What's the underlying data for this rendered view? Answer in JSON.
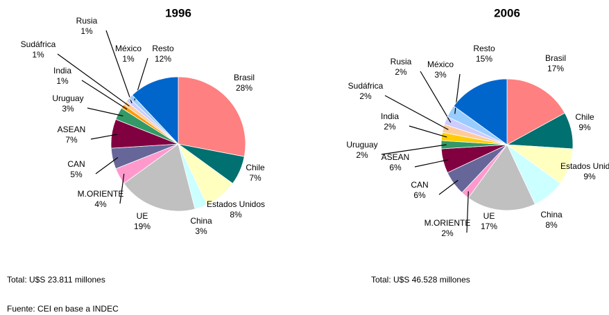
{
  "chart_data": [
    {
      "type": "pie",
      "title": "1996",
      "note": "Total: U$S 23.811 millones",
      "categories": [
        "Brasil",
        "Chile",
        "Estados Unidos",
        "China",
        "UE",
        "M.ORIENTE",
        "CAN",
        "ASEAN",
        "Uruguay",
        "India",
        "Sudáfrica",
        "Rusia",
        "México",
        "Resto"
      ],
      "values": [
        28,
        7,
        8,
        3,
        19,
        4,
        5,
        7,
        3,
        1,
        1,
        1,
        1,
        12
      ],
      "value_labels": [
        "28%",
        "7%",
        "8%",
        "3%",
        "19%",
        "4%",
        "5%",
        "7%",
        "3%",
        "1%",
        "1%",
        "1%",
        "1%",
        "12%"
      ],
      "colors": [
        "#ff8080",
        "#007070",
        "#ffffc0",
        "#ccffff",
        "#c0c0c0",
        "#ff99cc",
        "#666699",
        "#800040",
        "#339966",
        "#ff9900",
        "#ffcc99",
        "#ccccff",
        "#99ccff",
        "#0066cc"
      ]
    },
    {
      "type": "pie",
      "title": "2006",
      "note": "Total: U$S 46.528 millones",
      "categories": [
        "Brasil",
        "Chile",
        "Estados Unidos",
        "China",
        "UE",
        "M.ORIENTE",
        "CAN",
        "ASEAN",
        "Uruguay",
        "India",
        "Sudáfrica",
        "Rusia",
        "México",
        "Resto"
      ],
      "values": [
        17,
        9,
        9,
        8,
        17,
        2,
        6,
        6,
        2,
        2,
        2,
        2,
        3,
        15
      ],
      "value_labels": [
        "17%",
        "9%",
        "9%",
        "8%",
        "17%",
        "2%",
        "6%",
        "6%",
        "2%",
        "2%",
        "2%",
        "2%",
        "3%",
        "15%"
      ],
      "colors": [
        "#ff8080",
        "#007070",
        "#ffffc0",
        "#ccffff",
        "#c0c0c0",
        "#ff99cc",
        "#666699",
        "#800040",
        "#339966",
        "#ffcc00",
        "#ffcc99",
        "#ccccff",
        "#99ccff",
        "#0066cc"
      ]
    }
  ],
  "source": "Fuente: CEI en base a INDEC"
}
